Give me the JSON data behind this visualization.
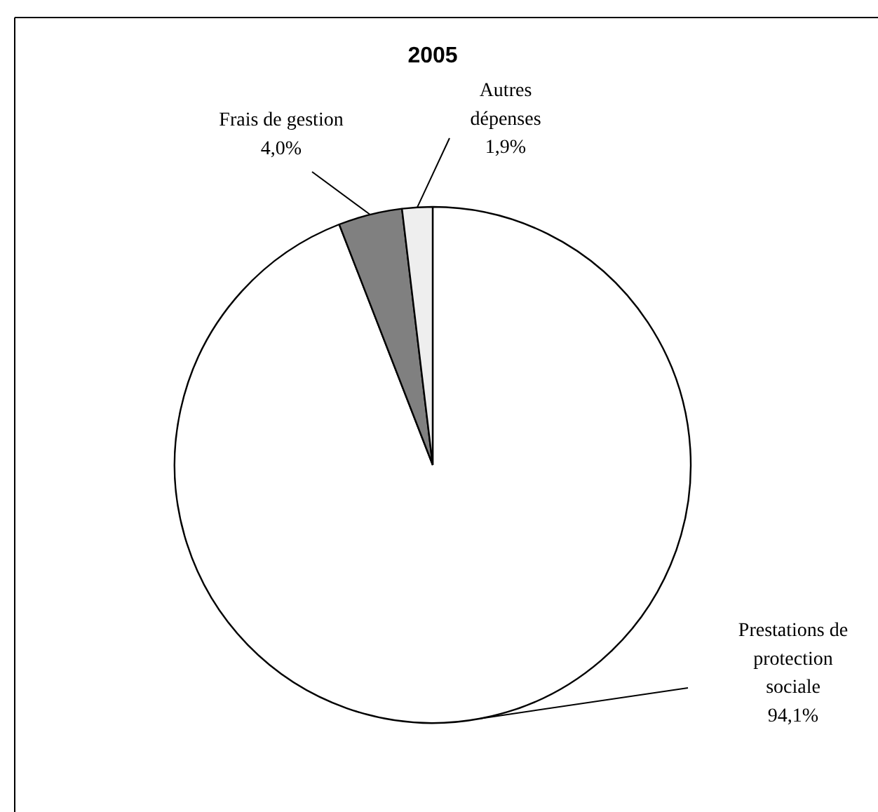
{
  "chart_data": {
    "type": "pie",
    "title": "2005",
    "categories": [
      "Prestations de protection sociale",
      "Frais de gestion",
      "Autres dépenses"
    ],
    "values": [
      94.1,
      4.0,
      1.9
    ],
    "colors": [
      "#ffffff",
      "#808080",
      "#eeeeee"
    ],
    "value_labels": [
      "94,1%",
      "4,0%",
      "1,9%"
    ]
  }
}
